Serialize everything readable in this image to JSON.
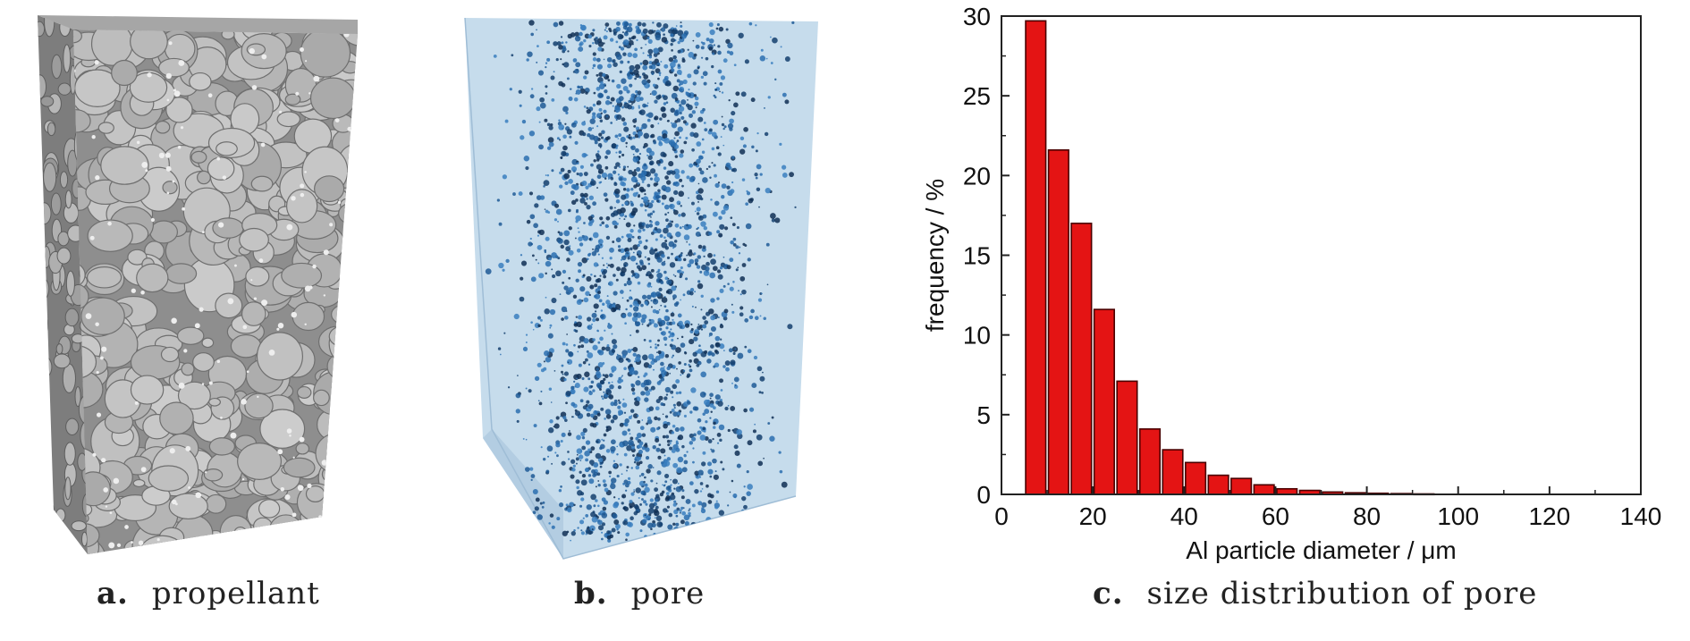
{
  "panels": [
    {
      "letter": "a.",
      "label": "propellant"
    },
    {
      "letter": "b.",
      "label": "pore"
    },
    {
      "letter": "c.",
      "label": "size distribution of pore"
    }
  ],
  "colors": {
    "propellant_face": "#9a9a9a",
    "propellant_particle": "#bdbdbd",
    "pore_box": "#bcd6ea",
    "pore_dot": "#1f5a96",
    "bar_fill": "#e41414",
    "bar_stroke": "#4a0000"
  },
  "chart_data": {
    "type": "bar",
    "xlabel": "Al particle diameter / μm",
    "ylabel": "frequency / %",
    "xlim": [
      0,
      140
    ],
    "ylim": [
      0,
      30
    ],
    "xticks": [
      0,
      20,
      40,
      60,
      80,
      100,
      120,
      140
    ],
    "yticks": [
      0,
      5,
      10,
      15,
      20,
      25,
      30
    ],
    "grid": false,
    "bin_width": 5,
    "bin_start": 5,
    "values": [
      29.7,
      21.6,
      17.0,
      11.6,
      7.1,
      4.1,
      2.8,
      2.0,
      1.2,
      1.0,
      0.6,
      0.35,
      0.25,
      0.15,
      0.1,
      0.07,
      0.05,
      0.03
    ]
  }
}
